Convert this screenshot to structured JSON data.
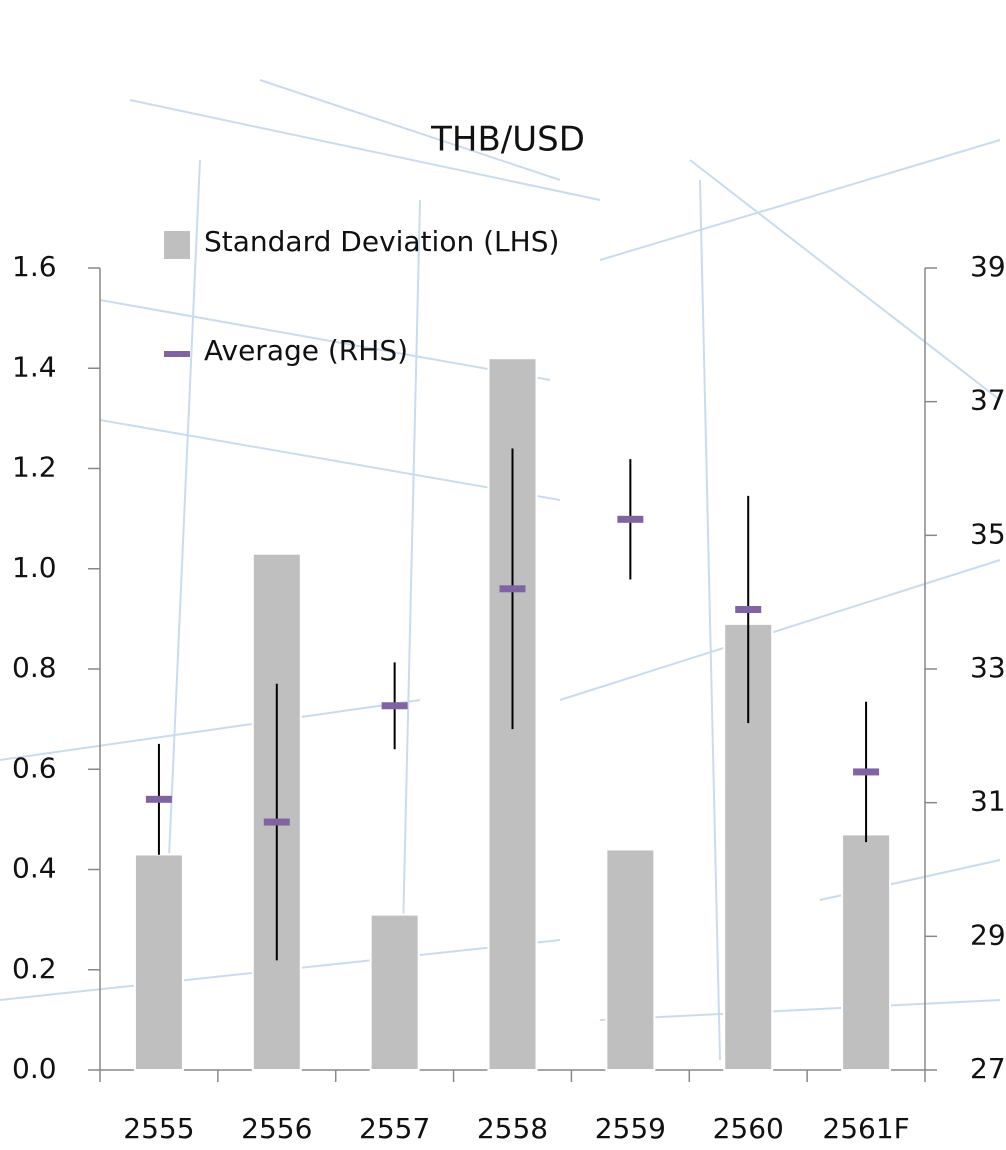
{
  "chart_data": {
    "type": "bar_errorbar",
    "title": "THB/USD",
    "categories": [
      "2555",
      "2556",
      "2557",
      "2558",
      "2559",
      "2560",
      "2561F"
    ],
    "series": [
      {
        "name": "Standard Deviation (LHS)",
        "color": "#bfbfbf",
        "values": [
          0.43,
          1.03,
          0.31,
          1.42,
          0.44,
          0.89,
          0.47
        ]
      },
      {
        "name": "Average (RHS)",
        "color": "#8064a2",
        "axis": "y2",
        "values": [
          31.05,
          30.71,
          32.45,
          34.2,
          35.24,
          33.89,
          31.46
        ],
        "errors": [
          0.83,
          2.07,
          0.65,
          2.1,
          0.9,
          1.7,
          1.05
        ]
      }
    ],
    "ylim": [
      0,
      1.6
    ],
    "yticks": [
      {
        "value": 0,
        "label": "0.0"
      },
      {
        "value": 0.2,
        "label": "0.2"
      },
      {
        "value": 0.4,
        "label": "0.4"
      },
      {
        "value": 0.6,
        "label": "0.6"
      },
      {
        "value": 0.8,
        "label": "0.8"
      },
      {
        "value": 1,
        "label": "1.0"
      },
      {
        "value": 1.2,
        "label": "1.2"
      },
      {
        "value": 1.4,
        "label": "1.4"
      },
      {
        "value": 1.6,
        "label": "1.6"
      }
    ],
    "y2lim": [
      27,
      39
    ],
    "y2ticks": [
      27,
      29,
      31,
      33,
      35,
      37,
      39
    ],
    "legend": "top-left"
  }
}
